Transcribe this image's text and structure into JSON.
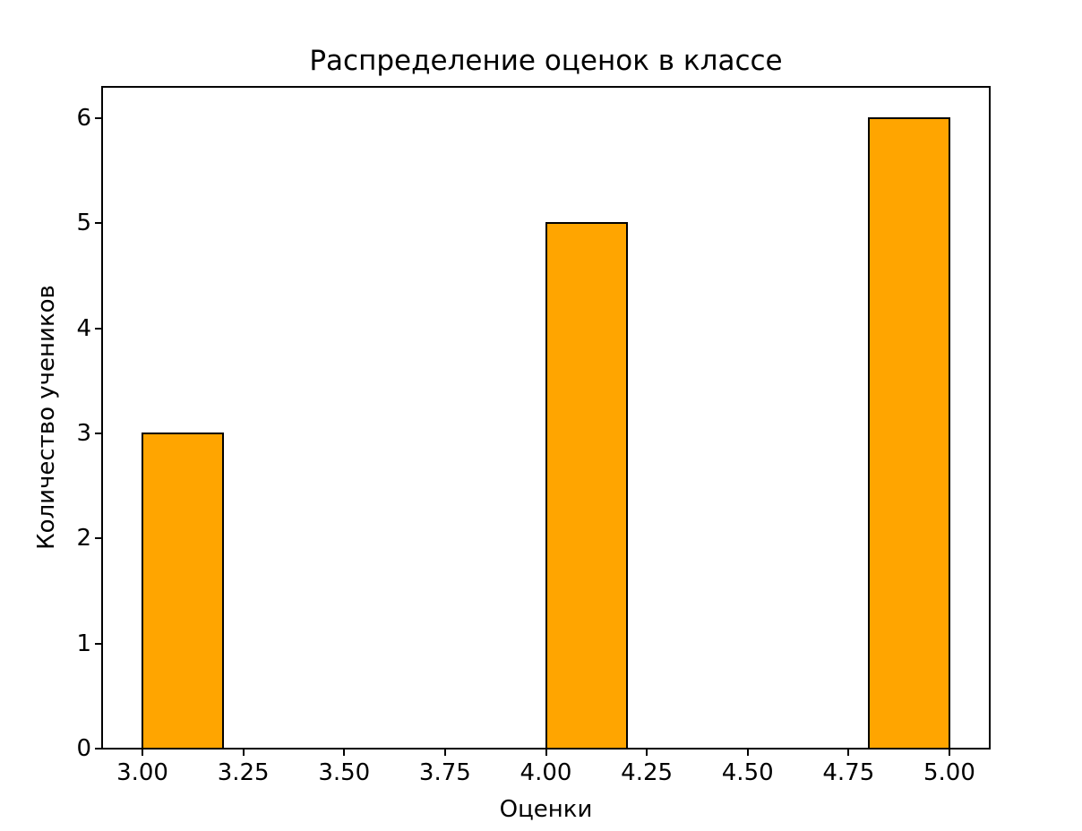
{
  "chart_data": {
    "type": "bar",
    "title": "Распределение оценок в классе",
    "xlabel": "Оценки",
    "ylabel": "Количество учеников",
    "grades": [
      3,
      4,
      5
    ],
    "counts": [
      3,
      5,
      6
    ],
    "bars": [
      {
        "x_start": 3.0,
        "x_end": 3.2,
        "value": 3
      },
      {
        "x_start": 4.0,
        "x_end": 4.2,
        "value": 5
      },
      {
        "x_start": 4.8,
        "x_end": 5.0,
        "value": 6
      }
    ],
    "x_ticks": [
      {
        "value": 3.0,
        "label": "3.00"
      },
      {
        "value": 3.25,
        "label": "3.25"
      },
      {
        "value": 3.5,
        "label": "3.50"
      },
      {
        "value": 3.75,
        "label": "3.75"
      },
      {
        "value": 4.0,
        "label": "4.00"
      },
      {
        "value": 4.25,
        "label": "4.25"
      },
      {
        "value": 4.5,
        "label": "4.50"
      },
      {
        "value": 4.75,
        "label": "4.75"
      },
      {
        "value": 5.0,
        "label": "5.00"
      }
    ],
    "y_ticks": [
      {
        "value": 0,
        "label": "0"
      },
      {
        "value": 1,
        "label": "1"
      },
      {
        "value": 2,
        "label": "2"
      },
      {
        "value": 3,
        "label": "3"
      },
      {
        "value": 4,
        "label": "4"
      },
      {
        "value": 5,
        "label": "5"
      },
      {
        "value": 6,
        "label": "6"
      }
    ],
    "xlim": [
      2.9,
      5.1
    ],
    "ylim": [
      0,
      6.3
    ],
    "bar_color": "#FFA500",
    "bar_edge_color": "#000000",
    "background": "#FFFFFF",
    "grid": false,
    "legend": null
  }
}
